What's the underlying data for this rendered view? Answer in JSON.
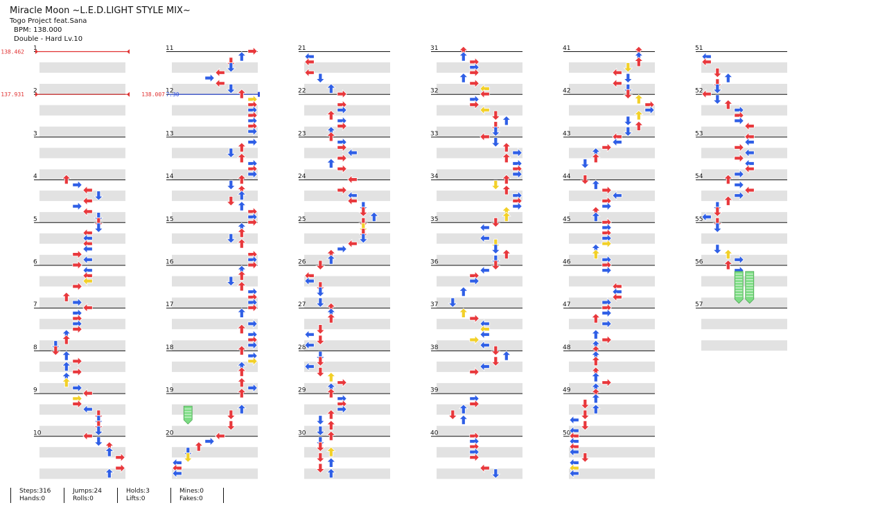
{
  "song": {
    "title": "Miracle Moon ~L.E.D.LIGHT STYLE MIX~",
    "artist": "Togo Project feat.Sana",
    "bpm": "BPM: 138.000",
    "difficulty": "Double - Hard Lv.10"
  },
  "measure_labels": [
    "1",
    "2",
    "3",
    "4",
    "5",
    "6",
    "7",
    "8",
    "9",
    "10",
    "11",
    "12",
    "13",
    "14",
    "15",
    "16",
    "17",
    "18",
    "19",
    "20",
    "21",
    "22",
    "23",
    "24",
    "25",
    "26",
    "27",
    "28",
    "29",
    "30",
    "31",
    "32",
    "33",
    "34",
    "35",
    "36",
    "37",
    "38",
    "39",
    "40",
    "41",
    "42",
    "43",
    "44",
    "45",
    "46",
    "47",
    "48",
    "49",
    "50",
    "51",
    "52",
    "53",
    "54",
    "55",
    "56",
    "57"
  ],
  "bpm_changes": [
    {
      "measure": 1,
      "label": "138.462",
      "color": "#e03030"
    },
    {
      "measure": 2,
      "label": "137.931",
      "color": "#e03030"
    },
    {
      "measure": 12,
      "label": "138.007",
      "color": "#e03030"
    },
    {
      "measure": 12,
      "label": "7.30",
      "color": "#3050e0"
    }
  ],
  "colors": {
    "quarter": "#e8383c",
    "eighth": "#2f5fe6",
    "sixteenth": "#f2d028",
    "hold": "#7ddc84",
    "stripe": "#e2e2e2",
    "line": "#111111"
  },
  "stats": [
    {
      "label1": "Steps:316",
      "label2": "Hands:0"
    },
    {
      "label1": "Jumps:24",
      "label2": "Rolls:0"
    },
    {
      "label1": "Holds:3",
      "label2": "Lifts:0"
    },
    {
      "label1": "Mines:0",
      "label2": "Fakes:0"
    }
  ]
}
